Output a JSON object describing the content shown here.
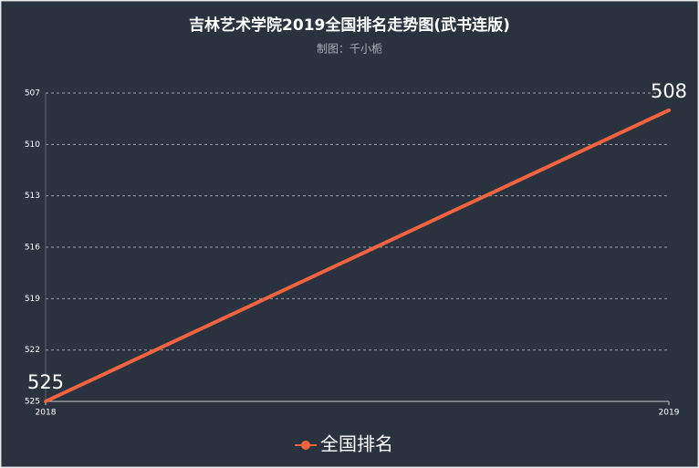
{
  "chart_data": {
    "type": "line",
    "title": "吉林艺术学院2019全国排名走势图(武书连版)",
    "subtitle": "制图：千小栀",
    "categories": [
      "2018",
      "2019"
    ],
    "series": [
      {
        "name": "全国排名",
        "color": "#f2643f",
        "values": [
          525,
          508
        ]
      }
    ],
    "ylim": [
      507,
      525
    ],
    "yticks": [
      507,
      510,
      513,
      516,
      519,
      522,
      525
    ],
    "y_inverse": true,
    "grid": true,
    "legend": "bottom",
    "data_labels": true
  }
}
